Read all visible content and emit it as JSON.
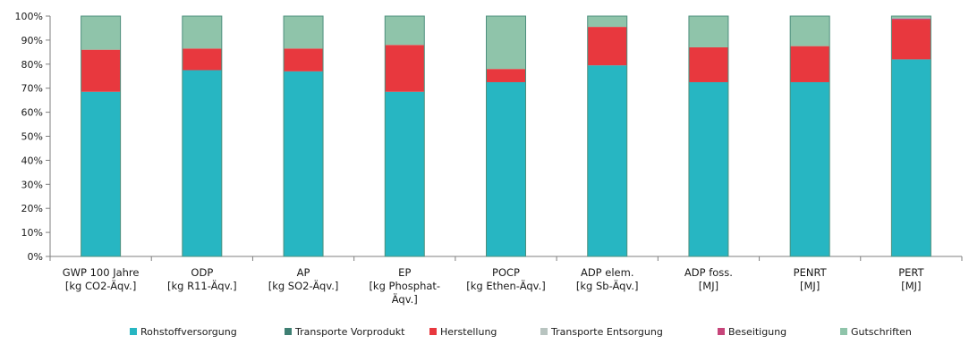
{
  "chart_data": {
    "type": "bar",
    "stacked": true,
    "percent": true,
    "categories": [
      [
        "GWP 100 Jahre",
        "[kg CO2-Äqv.]"
      ],
      [
        "ODP",
        "[kg R11-Äqv.]"
      ],
      [
        "AP",
        "[kg SO2-Äqv.]"
      ],
      [
        "EP",
        "[kg Phosphat-",
        "Äqv.]"
      ],
      [
        "POCP",
        "[kg Ethen-Äqv.]"
      ],
      [
        "ADP elem.",
        "[kg Sb-Äqv.]"
      ],
      [
        "ADP foss.",
        "[MJ]"
      ],
      [
        "PENRT",
        "[MJ]"
      ],
      [
        "PERT",
        "[MJ]"
      ]
    ],
    "series": [
      {
        "name": "Rohstoffversorgung",
        "color": "#27b6c2",
        "values": [
          68.5,
          77.5,
          77,
          68.5,
          72.5,
          79.5,
          72.5,
          72.5,
          82
        ]
      },
      {
        "name": "Transporte Vorprodukt",
        "color": "#3f7f73",
        "values": [
          0,
          0,
          0,
          0,
          0,
          0,
          0,
          0,
          0
        ]
      },
      {
        "name": "Herstellung",
        "color": "#e8383e",
        "values": [
          17.5,
          9,
          9.5,
          19.5,
          5.5,
          16,
          14.5,
          15,
          16.5
        ]
      },
      {
        "name": "Transporte Entsorgung",
        "color": "#b8c4c0",
        "values": [
          0,
          0,
          0,
          0,
          0,
          0,
          0,
          0,
          0
        ]
      },
      {
        "name": "Beseitigung",
        "color": "#c7457a",
        "values": [
          0,
          0,
          0,
          0,
          0,
          0,
          0,
          0,
          0.5
        ]
      },
      {
        "name": "Gutschriften",
        "color": "#8fc4aa",
        "values": [
          14,
          13.5,
          13.5,
          12,
          22,
          4.5,
          13,
          12.5,
          1
        ]
      }
    ],
    "yticks": [
      "0%",
      "10%",
      "20%",
      "30%",
      "40%",
      "50%",
      "60%",
      "70%",
      "80%",
      "90%",
      "100%"
    ],
    "ylim": [
      0,
      100
    ],
    "grid": false,
    "legend": "bottom"
  }
}
